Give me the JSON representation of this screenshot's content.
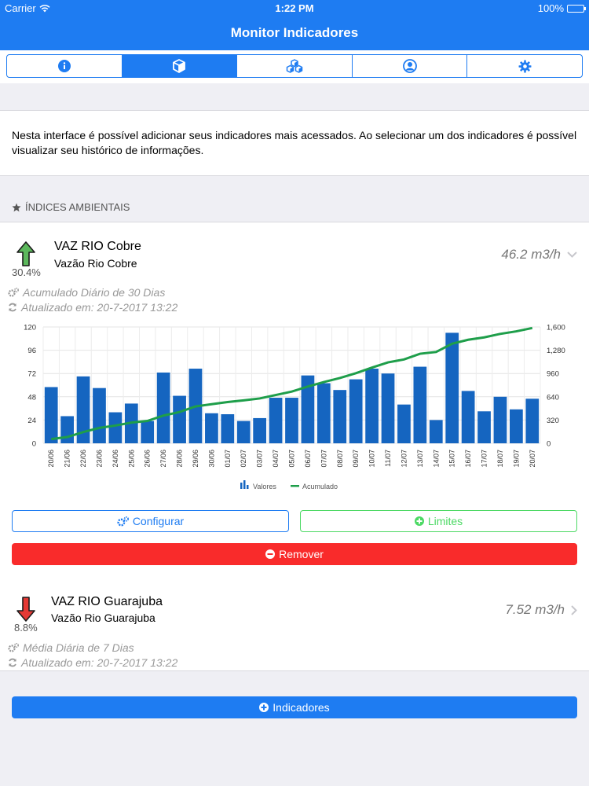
{
  "status_bar": {
    "carrier": "Carrier",
    "time": "1:22 PM",
    "battery": "100%"
  },
  "nav": {
    "title": "Monitor Indicadores"
  },
  "tabs": [
    {
      "icon": "info-icon",
      "active": false
    },
    {
      "icon": "cube-icon",
      "active": true
    },
    {
      "icon": "cubes-icon",
      "active": false
    },
    {
      "icon": "user-icon",
      "active": false
    },
    {
      "icon": "gear-icon",
      "active": false
    }
  ],
  "description": "Nesta interface é possível adicionar seus indicadores mais acessados. Ao selecionar um dos indicadores é possível visualizar seu histórico de informações.",
  "section": {
    "title": "ÍNDICES AMBIENTAIS"
  },
  "indicators": [
    {
      "title": "VAZ RIO Cobre",
      "subtitle": "Vazão Rio Cobre",
      "trend": "up",
      "percent": "30.4%",
      "value": "46.2 m3/h",
      "aggregation": "Acumulado Diário de 30 Dias",
      "updated": "Atualizado em: 20-7-2017 13:22",
      "expanded": true
    },
    {
      "title": "VAZ RIO Guarajuba",
      "subtitle": "Vazão Rio Guarajuba",
      "trend": "down",
      "percent": "8.8%",
      "value": "7.52 m3/h",
      "aggregation": "Média Diária de 7 Dias",
      "updated": "Atualizado em: 20-7-2017 13:22",
      "expanded": false
    }
  ],
  "buttons": {
    "configurar": "Configurar",
    "limites": "Limites",
    "remover": "Remover",
    "indicadores": "Indicadores"
  },
  "colors": {
    "accent": "#1e7cf2",
    "bar": "#1565c0",
    "line": "#1e9e4a",
    "danger": "#f92b2b",
    "success": "#4cd964"
  },
  "chart_data": {
    "type": "bar",
    "categories": [
      "20/06",
      "21/06",
      "22/06",
      "23/06",
      "24/06",
      "25/06",
      "26/06",
      "27/06",
      "28/06",
      "29/06",
      "30/06",
      "01/07",
      "02/07",
      "03/07",
      "04/07",
      "05/07",
      "06/07",
      "07/07",
      "08/07",
      "09/07",
      "10/07",
      "11/07",
      "12/07",
      "13/07",
      "14/07",
      "15/07",
      "16/07",
      "17/07",
      "18/07",
      "19/07",
      "20/07"
    ],
    "series": [
      {
        "name": "Valores",
        "type": "bar",
        "axis": "left",
        "values": [
          58,
          28,
          69,
          57,
          32,
          41,
          23,
          73,
          49,
          77,
          31,
          30,
          23,
          26,
          47,
          47,
          70,
          62,
          55,
          66,
          77,
          72,
          40,
          79,
          24,
          114,
          54,
          33,
          48,
          35,
          46
        ]
      },
      {
        "name": "Acumulado",
        "type": "line",
        "axis": "right",
        "values": [
          58,
          86,
          155,
          212,
          244,
          285,
          308,
          381,
          430,
          507,
          538,
          568,
          591,
          617,
          664,
          711,
          781,
          843,
          898,
          964,
          1041,
          1113,
          1153,
          1232,
          1256,
          1370,
          1424,
          1457,
          1505,
          1540,
          1586
        ]
      }
    ],
    "y_left": {
      "min": 0,
      "max": 120,
      "ticks": [
        "0",
        "24",
        "48",
        "72",
        "96",
        "120"
      ]
    },
    "y_right": {
      "min": 0,
      "max": 1600,
      "ticks": [
        "0",
        "320",
        "640",
        "960",
        "1,280",
        "1,600"
      ]
    },
    "grid": true,
    "legend": "bottom"
  }
}
